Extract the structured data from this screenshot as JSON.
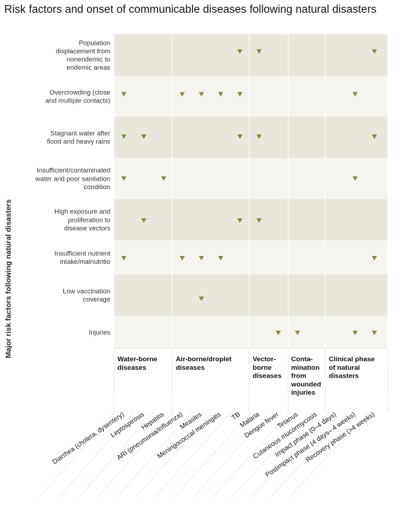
{
  "title": "Risk factors and onset of communicable diseases following natural disasters",
  "y_axis_label": "Major risk factors following natural disasters",
  "colors": {
    "marker": "#8a8a3a",
    "band_dark": "#e9e7dc",
    "band_light": "#f5f4ee",
    "divider": "#c8c6b8"
  },
  "rows": [
    {
      "label": [
        "Population",
        "displacement from",
        "nonendemic to",
        "endemic areas"
      ],
      "marks": [
        6,
        7,
        13
      ]
    },
    {
      "label": [
        "Overcrowding (close",
        "and multiple contacts)"
      ],
      "marks": [
        0,
        3,
        4,
        5,
        6,
        12
      ]
    },
    {
      "label": [
        "Stagnant water after",
        "flood and heavy rains"
      ],
      "marks": [
        0,
        1,
        6,
        7,
        13
      ]
    },
    {
      "label": [
        "Insufficient/contaminated",
        "water and poor sanitation",
        "condition"
      ],
      "marks": [
        0,
        2,
        12
      ]
    },
    {
      "label": [
        "High exposure and",
        "proliferation to",
        "disease vectors"
      ],
      "marks": [
        1,
        6,
        7
      ]
    },
    {
      "label": [
        "Insufficient nutrient",
        "intake/malnutritio"
      ],
      "marks": [
        0,
        3,
        4,
        5,
        13
      ]
    },
    {
      "label": [
        "Low vaccination",
        "coverage"
      ],
      "marks": [
        4
      ]
    },
    {
      "label": [
        "Injuries"
      ],
      "marks": [
        8,
        9,
        12,
        13
      ]
    }
  ],
  "groups": [
    {
      "label": [
        "Water-borne",
        "diseases"
      ]
    },
    {
      "label": [
        "Air-borne/droplet",
        "diseases"
      ]
    },
    {
      "label": [
        "Vector-",
        "borne",
        "diseases"
      ]
    },
    {
      "label": [
        "Conta-",
        "mination",
        "from",
        "wounded",
        "injuries"
      ]
    },
    {
      "label": [
        "Clinical phase",
        "of natural",
        "disasters"
      ]
    }
  ],
  "diseases": [
    "Diarrhea (cholera, dysentery)",
    "Leptospirosis",
    "Hepatitis",
    "ARI (pneumonia/influenza)",
    "Measles",
    "Meningococcal meningitis",
    "TB",
    "Malaria",
    "Dengue fever",
    "Tetanus",
    "Cutaneous mucormycosis",
    "Impact phase (0–4 days)",
    "Postimpact phase (4 days– 4 weeks)",
    "Recovery phase (>4 weeks)"
  ]
}
